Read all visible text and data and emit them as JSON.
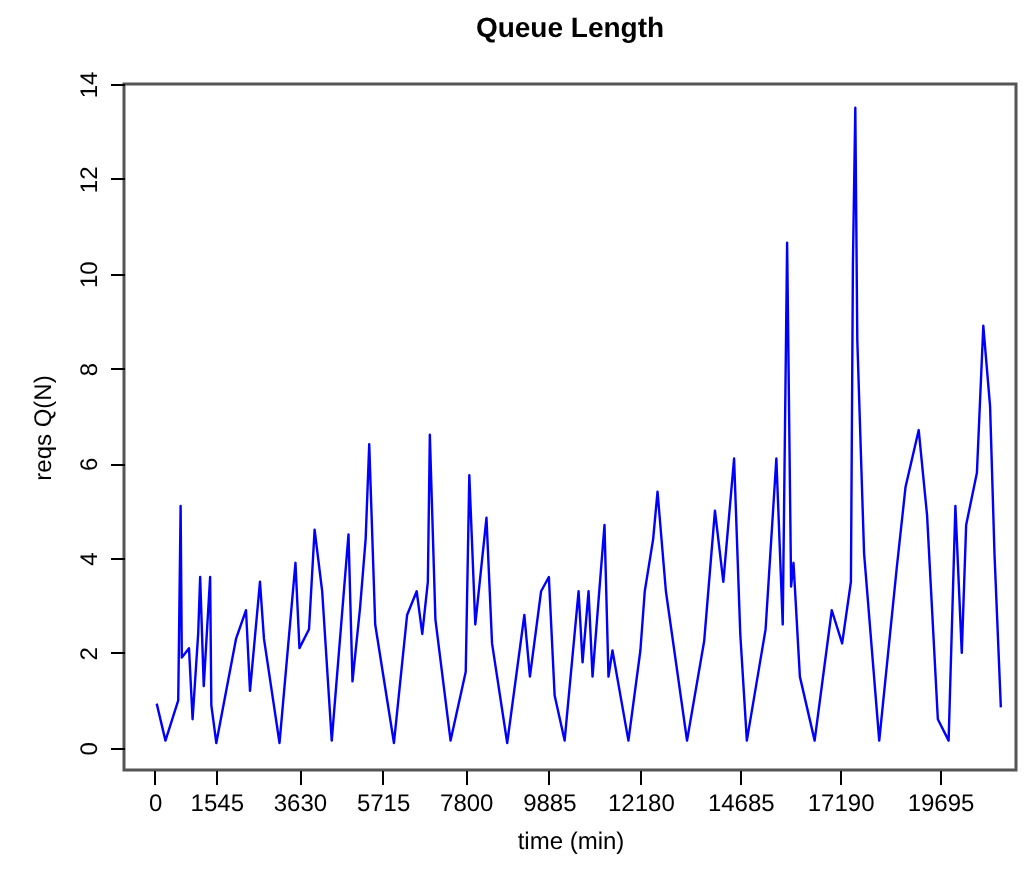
{
  "chart_data": {
    "type": "line",
    "title": "Queue Length",
    "xlabel": "time (min)",
    "ylabel": "reqs Q(N)",
    "x": [
      50,
      270,
      590,
      650,
      680,
      860,
      950,
      1090,
      1140,
      1230,
      1390,
      1420,
      1545,
      2040,
      2290,
      2390,
      2640,
      2740,
      3130,
      3530,
      3630,
      3870,
      4010,
      4200,
      4440,
      4860,
      4960,
      5150,
      5290,
      5380,
      5530,
      6000,
      6330,
      6570,
      6710,
      6850,
      6900,
      7040,
      7420,
      7800,
      7890,
      8040,
      8320,
      8460,
      8840,
      9270,
      9410,
      9690,
      9885,
      10030,
      10280,
      10630,
      10730,
      10880,
      10980,
      11280,
      11380,
      11480,
      11880,
      12180,
      12290,
      12500,
      12610,
      12820,
      13350,
      13780,
      14050,
      14260,
      14530,
      14685,
      14850,
      15320,
      15590,
      15750,
      15860,
      15960,
      16020,
      16180,
      16550,
      16980,
      17240,
      17460,
      17510,
      17570,
      17620,
      17790,
      18170,
      18610,
      18830,
      19160,
      19370,
      19640,
      19910,
      20080,
      20240,
      20350,
      20620,
      20780,
      20950,
      21060,
      21220
    ],
    "series": [
      {
        "color": "#0000ff",
        "values": [
          0.93,
          0.15,
          1.0,
          5.1,
          1.9,
          2.1,
          0.6,
          2.4,
          3.6,
          1.3,
          3.6,
          0.9,
          0.1,
          2.3,
          2.9,
          1.2,
          3.5,
          2.3,
          0.1,
          3.9,
          2.1,
          2.5,
          4.6,
          3.3,
          0.15,
          4.5,
          1.4,
          2.95,
          4.4,
          6.4,
          2.6,
          0.1,
          2.8,
          3.3,
          2.4,
          3.5,
          6.6,
          2.7,
          0.15,
          1.6,
          5.75,
          2.6,
          4.85,
          2.2,
          0.1,
          2.8,
          1.5,
          3.3,
          3.6,
          1.1,
          0.15,
          3.3,
          1.8,
          3.3,
          1.5,
          4.7,
          1.5,
          2.05,
          0.15,
          2.05,
          3.3,
          4.4,
          5.4,
          3.3,
          0.15,
          2.25,
          5.0,
          3.5,
          6.1,
          2.4,
          0.15,
          2.5,
          6.1,
          2.6,
          10.65,
          3.4,
          3.9,
          1.5,
          0.15,
          2.9,
          2.2,
          3.5,
          10.2,
          13.5,
          8.6,
          4.1,
          0.15,
          3.8,
          5.5,
          6.7,
          4.9,
          0.6,
          0.15,
          5.1,
          2.0,
          4.7,
          5.8,
          8.9,
          7.2,
          4.1,
          0.85
        ]
      }
    ],
    "xlim": [
      -770,
      21600
    ],
    "ylim": [
      -0.47,
      14
    ],
    "xticks": [
      0,
      1545,
      3630,
      5715,
      7800,
      9885,
      12180,
      14685,
      17190,
      19695
    ],
    "yticks": [
      0,
      2,
      4,
      6,
      8,
      10,
      12,
      14
    ],
    "grid": false,
    "marker": "none",
    "line_style": "solid"
  }
}
